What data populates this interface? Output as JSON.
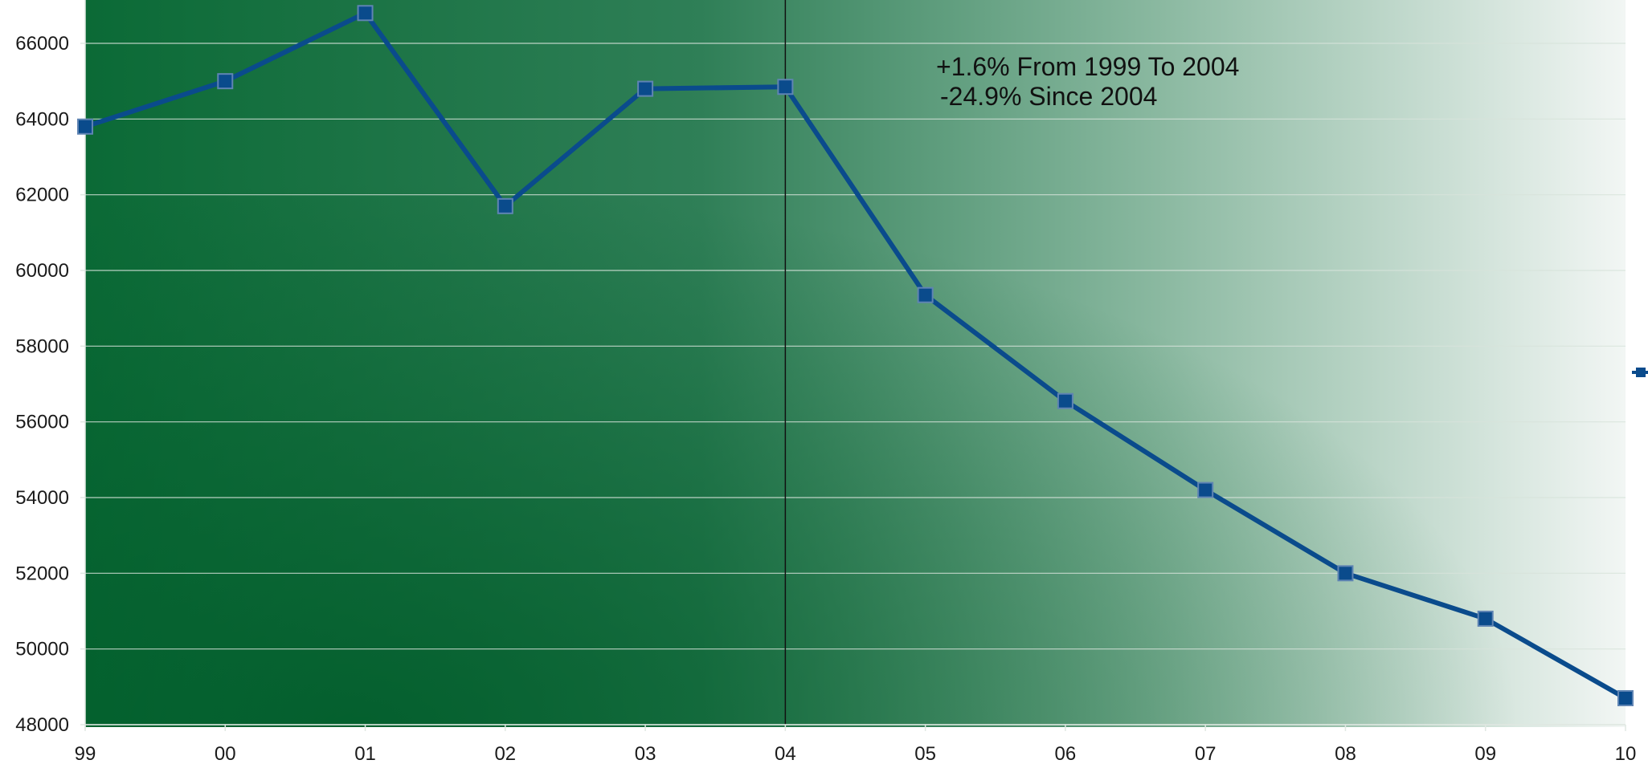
{
  "chart_data": {
    "type": "line",
    "title": "",
    "xlabel": "",
    "ylabel": "",
    "categories": [
      "99",
      "00",
      "01",
      "02",
      "03",
      "04",
      "05",
      "06",
      "07",
      "08",
      "09",
      "10"
    ],
    "series": [
      {
        "values": [
          63800,
          65000,
          66800,
          61700,
          64800,
          64850,
          59350,
          56550,
          54200,
          52000,
          50800,
          48700
        ]
      }
    ],
    "ylim": [
      48000,
      66000
    ],
    "yticks": [
      "48000",
      "50000",
      "52000",
      "54000",
      "56000",
      "58000",
      "60000",
      "62000",
      "64000",
      "66000"
    ],
    "grid": true,
    "reference_line": {
      "category": "04"
    },
    "annotations": [
      "+1.6% From 1999 To 2004",
      "-24.9% Since 2004"
    ],
    "colors": {
      "series": "#0a4b8c",
      "marker": "#0a4b8c",
      "grid": "#d7e3da",
      "reference_line": "#111111",
      "background_dark": "#00622d",
      "background_light": "#ffffff"
    }
  }
}
